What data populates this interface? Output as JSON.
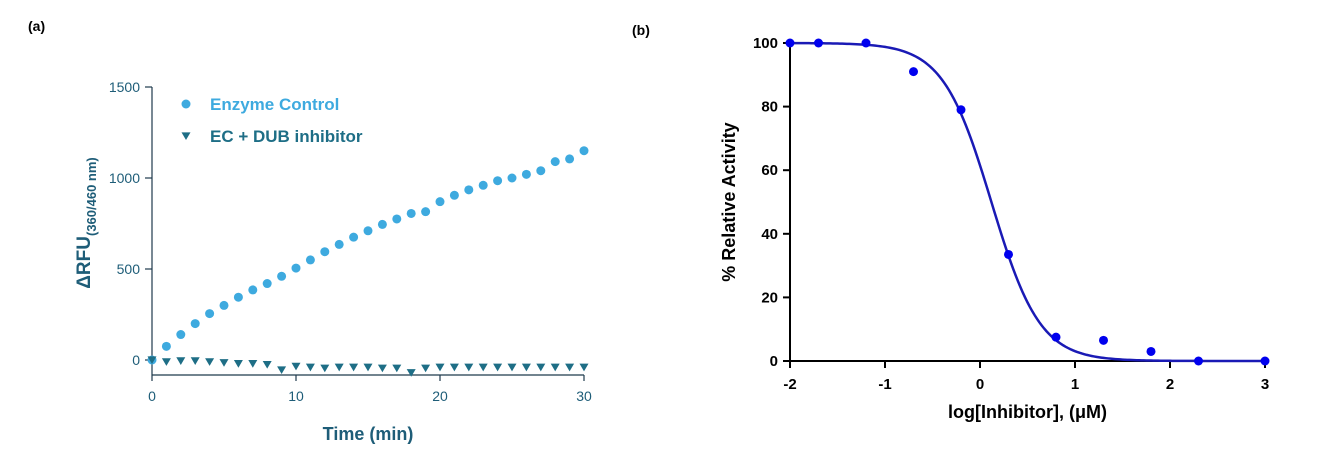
{
  "panels": [
    {
      "label": "(a)"
    },
    {
      "label": "(b)"
    }
  ],
  "chart_data": [
    {
      "type": "scatter",
      "xlabel": "Time (min)",
      "ylabel_main": "ΔRFU",
      "ylabel_sub": "(360/460 nm)",
      "xlim": [
        0,
        30
      ],
      "ylim": [
        -100,
        1500
      ],
      "xticks": [
        0,
        10,
        20,
        30
      ],
      "yticks": [
        0,
        500,
        1000,
        1500
      ],
      "grid": false,
      "legend_position": "top-left",
      "colors": {
        "axis": "#1e3a4c",
        "text": "#1e5d78"
      },
      "series": [
        {
          "name": "Enzyme Control",
          "marker": "circle",
          "color": "#3eaadf",
          "x": [
            0,
            1,
            2,
            3,
            4,
            5,
            6,
            7,
            8,
            9,
            10,
            11,
            12,
            13,
            14,
            15,
            16,
            17,
            18,
            19,
            20,
            21,
            22,
            23,
            24,
            25,
            26,
            27,
            28,
            29,
            30
          ],
          "y": [
            0,
            75,
            140,
            200,
            255,
            300,
            345,
            385,
            420,
            460,
            505,
            550,
            595,
            635,
            675,
            710,
            745,
            775,
            805,
            815,
            870,
            905,
            935,
            960,
            985,
            1000,
            1020,
            1040,
            1090,
            1105,
            1150
          ]
        },
        {
          "name": "EC + DUB inhibitor",
          "marker": "triangle-down",
          "color": "#1e6e86",
          "x": [
            0,
            1,
            2,
            3,
            4,
            5,
            6,
            7,
            8,
            9,
            10,
            11,
            12,
            13,
            14,
            15,
            16,
            17,
            18,
            19,
            20,
            21,
            22,
            23,
            24,
            25,
            26,
            27,
            28,
            29,
            30
          ],
          "y": [
            0,
            -10,
            -5,
            -5,
            -10,
            -15,
            -20,
            -20,
            -25,
            -55,
            -35,
            -40,
            -45,
            -40,
            -40,
            -40,
            -45,
            -45,
            -70,
            -45,
            -40,
            -40,
            -40,
            -40,
            -40,
            -40,
            -40,
            -40,
            -40,
            -40,
            -40
          ]
        }
      ]
    },
    {
      "type": "scatter",
      "xlabel": "log[Inhibitor], (μM)",
      "ylabel": "% Relative Activity",
      "xlim": [
        -2,
        3
      ],
      "ylim": [
        0,
        100
      ],
      "xticks": [
        -2,
        -1,
        0,
        1,
        2,
        3
      ],
      "yticks": [
        0,
        20,
        40,
        60,
        80,
        100
      ],
      "grid": false,
      "colors": {
        "axis": "#000000",
        "series": "#0000ee",
        "curve": "#1a1ab5"
      },
      "series": [
        {
          "marker": "circle",
          "x": [
            -2,
            -1.7,
            -1.2,
            -0.7,
            -0.2,
            0.3,
            0.8,
            1.3,
            1.8,
            2.3,
            3
          ],
          "y": [
            100,
            100,
            100,
            91,
            79,
            33.5,
            7.5,
            6.5,
            3,
            0,
            0
          ]
        }
      ],
      "fit_curve": {
        "top": 100,
        "bottom": 0,
        "log_ic50": 0.12,
        "hill_slope": 1.7
      }
    }
  ]
}
